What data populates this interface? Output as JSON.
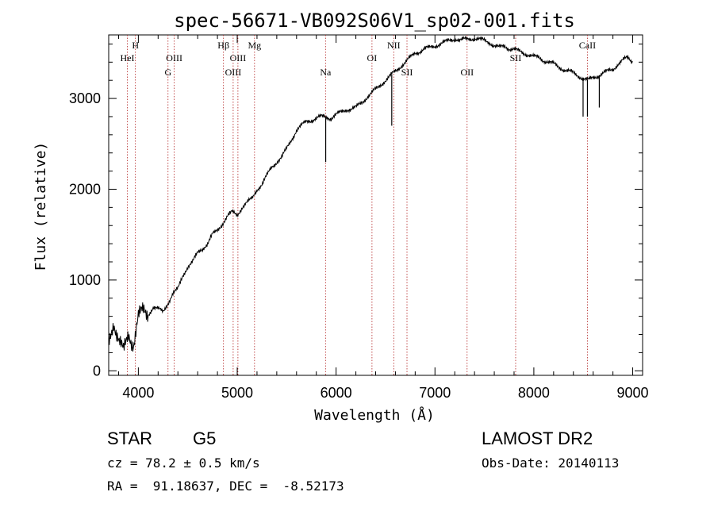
{
  "chart_data": {
    "type": "line",
    "title": "spec-56671-VB092S06V1_sp02-001.fits",
    "xlabel": "Wavelength (Å)",
    "ylabel": "Flux (relative)",
    "xlim": [
      3700,
      9100
    ],
    "ylim": [
      -50,
      3700
    ],
    "grid": false,
    "x_ticks": [
      4000,
      5000,
      6000,
      7000,
      8000,
      9000
    ],
    "y_ticks": [
      0,
      1000,
      2000,
      3000
    ],
    "x_tick_labels": [
      "4000",
      "5000",
      "6000",
      "7000",
      "8000",
      "9000"
    ],
    "y_tick_labels": [
      "0",
      "1000",
      "2000",
      "3000"
    ],
    "series": [
      {
        "x": [
          3700,
          3750,
          3800,
          3850,
          3900,
          3950,
          4000,
          4050,
          4100,
          4150,
          4200,
          4250,
          4300,
          4350,
          4400,
          4450,
          4500,
          4550,
          4600,
          4650,
          4700,
          4750,
          4800,
          4850,
          4900,
          4950,
          5000,
          5050,
          5100,
          5150,
          5200,
          5250,
          5300,
          5350,
          5400,
          5450,
          5500,
          5550,
          5600,
          5650,
          5700,
          5750,
          5800,
          5850,
          5900,
          5950,
          6000,
          6050,
          6100,
          6150,
          6200,
          6250,
          6300,
          6350,
          6400,
          6450,
          6500,
          6550,
          6600,
          6650,
          6700,
          6750,
          6800,
          6850,
          6900,
          6950,
          7000,
          7050,
          7100,
          7150,
          7200,
          7250,
          7300,
          7350,
          7400,
          7450,
          7500,
          7550,
          7600,
          7650,
          7700,
          7750,
          7800,
          7850,
          7900,
          7950,
          8000,
          8050,
          8100,
          8150,
          8200,
          8250,
          8300,
          8350,
          8400,
          8450,
          8500,
          8550,
          8600,
          8650,
          8700,
          8750,
          8800,
          8850,
          8900,
          8950,
          9000
        ],
        "y": [
          300,
          550,
          350,
          200,
          400,
          300,
          600,
          650,
          620,
          700,
          680,
          650,
          750,
          850,
          900,
          1050,
          1150,
          1200,
          1300,
          1350,
          1400,
          1500,
          1550,
          1620,
          1700,
          1750,
          1720,
          1800,
          1850,
          1900,
          2000,
          2050,
          2150,
          2250,
          2300,
          2350,
          2450,
          2550,
          2650,
          2700,
          2750,
          2760,
          2780,
          2800,
          2800,
          2780,
          2820,
          2850,
          2880,
          2880,
          2900,
          2950,
          3000,
          3050,
          3100,
          3150,
          3200,
          3250,
          3300,
          3350,
          3400,
          3450,
          3500,
          3520,
          3550,
          3560,
          3580,
          3600,
          3620,
          3640,
          3660,
          3640,
          3650,
          3660,
          3660,
          3650,
          3640,
          3620,
          3580,
          3560,
          3580,
          3550,
          3540,
          3520,
          3500,
          3480,
          3460,
          3450,
          3420,
          3400,
          3380,
          3350,
          3320,
          3300,
          3280,
          3250,
          3220,
          3200,
          3230,
          3250,
          3280,
          3300,
          3320,
          3380,
          3420,
          3450,
          3400
        ]
      }
    ],
    "absorption_dips": [
      {
        "x": 5895,
        "y": 2300
      },
      {
        "x": 6563,
        "y": 2700
      },
      {
        "x": 8498,
        "y": 2800
      },
      {
        "x": 8542,
        "y": 2800
      },
      {
        "x": 8662,
        "y": 2900
      }
    ],
    "line_markers": [
      {
        "wavelength": 3889,
        "label": "HeI",
        "row": 2
      },
      {
        "wavelength": 3970,
        "label": "H",
        "row": 1
      },
      {
        "wavelength": 4300,
        "label": "G",
        "row": 3
      },
      {
        "wavelength": 4363,
        "label": "OIII",
        "row": 2
      },
      {
        "wavelength": 4861,
        "label": "Hβ",
        "row": 1
      },
      {
        "wavelength": 4959,
        "label": "OIII",
        "row": 3
      },
      {
        "wavelength": 5007,
        "label": "OIII",
        "row": 2
      },
      {
        "wavelength": 5175,
        "label": "Mg",
        "row": 1
      },
      {
        "wavelength": 5893,
        "label": "Na",
        "row": 3
      },
      {
        "wavelength": 6363,
        "label": "OI",
        "row": 2
      },
      {
        "wavelength": 6583,
        "label": "NII",
        "row": 1
      },
      {
        "wavelength": 6717,
        "label": "SII",
        "row": 3
      },
      {
        "wavelength": 7325,
        "label": "OII",
        "row": 3
      },
      {
        "wavelength": 7816,
        "label": "SII",
        "row": 2
      },
      {
        "wavelength": 8542,
        "label": "CaII",
        "row": 1
      }
    ]
  },
  "info": {
    "object_class": "STAR",
    "subclass": "G5",
    "survey": "LAMOST DR2",
    "redshift": "cz = 78.2 ± 0.5 km/s",
    "obs_date": "Obs-Date: 20140113",
    "coords": "RA =  91.18637, DEC =  -8.52173"
  }
}
